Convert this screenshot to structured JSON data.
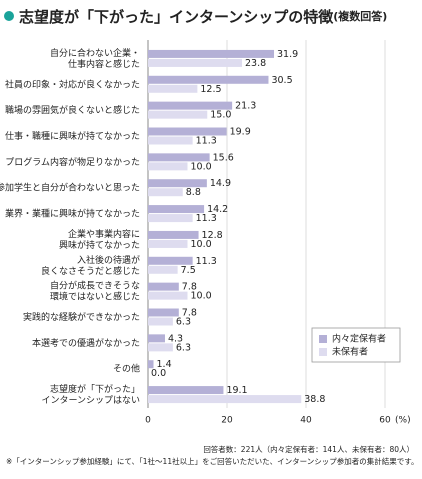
{
  "chart_data": {
    "type": "bar",
    "orientation": "horizontal",
    "title": "志望度が「下がった」インターンシップの特徴",
    "subtitle": "(複数回答)",
    "categories": [
      [
        "自分に合わない企業・",
        "仕事内容と感じた"
      ],
      [
        "社員の印象・対応が良くなかった"
      ],
      [
        "職場の雰囲気が良くないと感じた"
      ],
      [
        "仕事・職種に興味が持てなかった"
      ],
      [
        "プログラム内容が物足りなかった"
      ],
      [
        "参加学生と自分が合わないと思った"
      ],
      [
        "業界・業種に興味が持てなかった"
      ],
      [
        "企業や事業内容に",
        "興味が持てなかった"
      ],
      [
        "入社後の待遇が",
        "良くなさそうだと感じた"
      ],
      [
        "自分が成長できそうな",
        "環境ではないと感じた"
      ],
      [
        "実践的な経験ができなかった"
      ],
      [
        "本選考での優遇がなかった"
      ],
      [
        "その他"
      ],
      [
        "志望度が「下がった」",
        "インターンシップはない"
      ]
    ],
    "series": [
      {
        "name": "内々定保有者",
        "color": "#b4b0d6",
        "values": [
          31.9,
          30.5,
          21.3,
          19.9,
          15.6,
          14.9,
          14.2,
          12.8,
          11.3,
          7.8,
          7.8,
          4.3,
          1.4,
          19.1
        ],
        "value_labels": [
          "31.9",
          "30.5",
          "21.3",
          "19.9",
          "15.6",
          "14.9",
          "14.2",
          "12.8",
          "11.3",
          "7.8",
          "7.8",
          "4.3",
          "1.4",
          "19.1"
        ]
      },
      {
        "name": "未保有者",
        "color": "#dedcef",
        "values": [
          23.8,
          12.5,
          15.0,
          11.3,
          10.0,
          8.8,
          11.3,
          10.0,
          7.5,
          10.0,
          6.3,
          6.3,
          0.0,
          38.8
        ],
        "value_labels": [
          "23.8",
          "12.5",
          "15.0",
          "11.3",
          "10.0",
          "8.8",
          "11.3",
          "10.0",
          "7.5",
          "10.0",
          "6.3",
          "6.3",
          "0.0",
          "38.8"
        ]
      }
    ],
    "xlim": [
      0,
      60
    ],
    "xticks": [
      0,
      20,
      40,
      60
    ],
    "x_unit": "(%)",
    "grid": true,
    "legend": "lower right",
    "notes": [
      "回答者数：221人（内々定保有者：141人、未保有者：80人）",
      "※「インターンシップ参加経験」にて、「1社～11社以上」をご回答いただいた、インターンシップ参加者の集計結果です。"
    ]
  }
}
